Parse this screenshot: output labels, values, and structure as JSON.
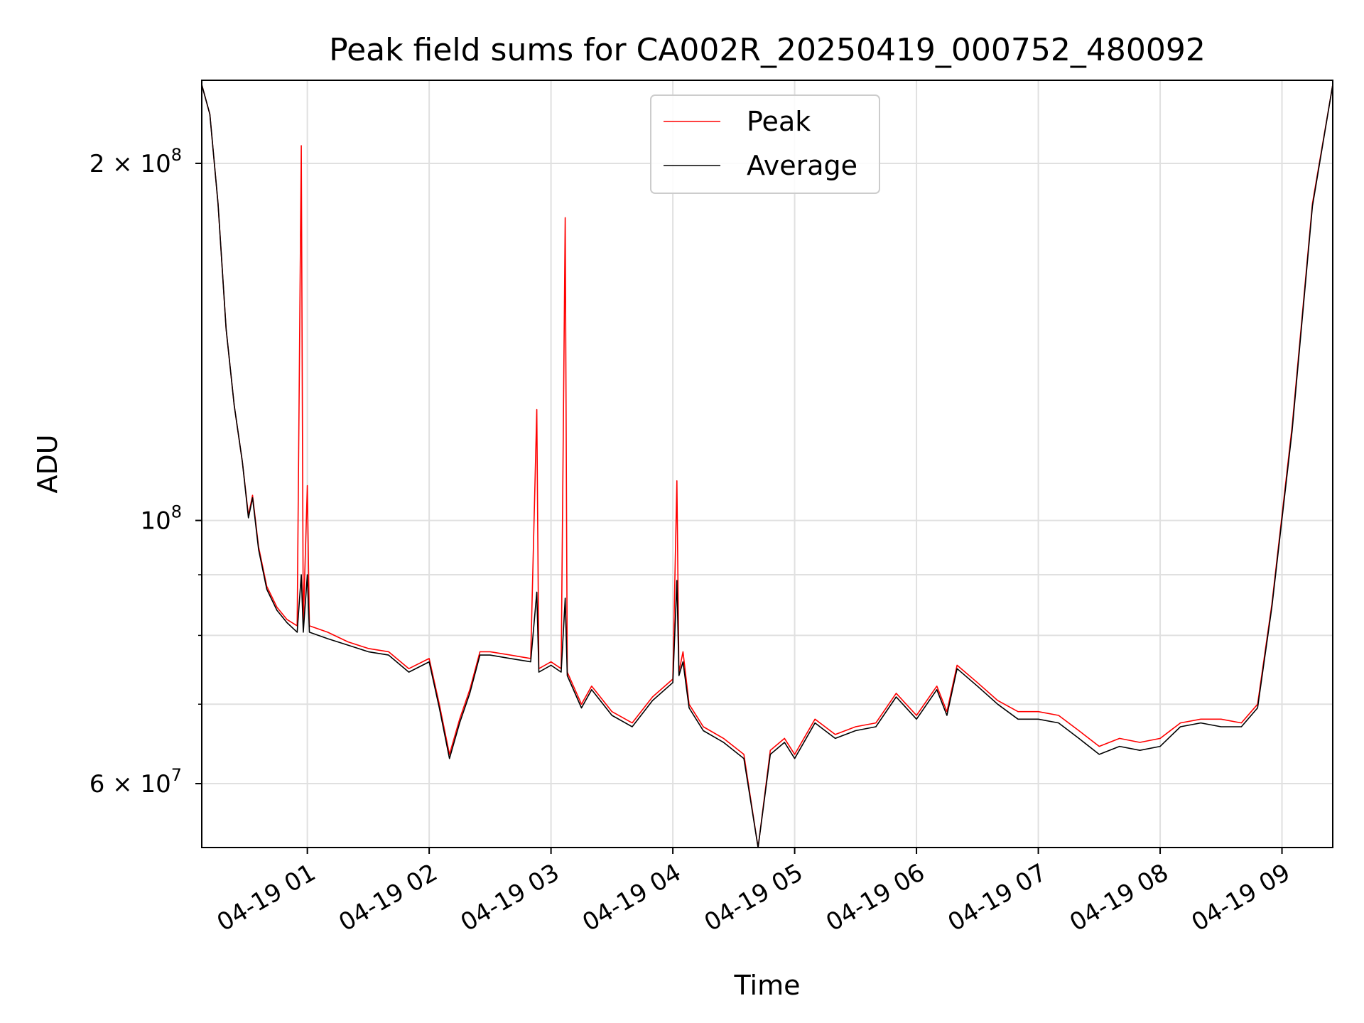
{
  "chart_data": {
    "type": "line",
    "title": "Peak field sums for CA002R_20250419_000752_480092",
    "xlabel": "Time",
    "ylabel": "ADU",
    "x_scale": "time",
    "y_scale": "log",
    "xlim": [
      "2025-04-19T00:08",
      "2025-04-19T09:25"
    ],
    "ylim": [
      53000000,
      235000000
    ],
    "x_ticks": [
      {
        "t": "2025-04-19T01:00",
        "label": "04-19 01"
      },
      {
        "t": "2025-04-19T02:00",
        "label": "04-19 02"
      },
      {
        "t": "2025-04-19T03:00",
        "label": "04-19 03"
      },
      {
        "t": "2025-04-19T04:00",
        "label": "04-19 04"
      },
      {
        "t": "2025-04-19T05:00",
        "label": "04-19 05"
      },
      {
        "t": "2025-04-19T06:00",
        "label": "04-19 06"
      },
      {
        "t": "2025-04-19T07:00",
        "label": "04-19 07"
      },
      {
        "t": "2025-04-19T08:00",
        "label": "04-19 08"
      },
      {
        "t": "2025-04-19T09:00",
        "label": "04-19 09"
      }
    ],
    "y_major_ticks": [
      {
        "value": 60000000,
        "mantissa": "6",
        "prefix": "6 × 10",
        "exp": "7"
      },
      {
        "value": 100000000,
        "mantissa": "",
        "prefix": "10",
        "exp": "8"
      },
      {
        "value": 200000000,
        "mantissa": "2",
        "prefix": "2 × 10",
        "exp": "8"
      }
    ],
    "y_minor_ticks": [
      70000000,
      80000000,
      90000000
    ],
    "grid": true,
    "legend_position": "top-center",
    "series": [
      {
        "name": "Peak",
        "color": "#ff0000",
        "points": [
          [
            "2025-04-19T00:08",
            233000000
          ],
          [
            "2025-04-19T00:12",
            220000000
          ],
          [
            "2025-04-19T00:16",
            185000000
          ],
          [
            "2025-04-19T00:20",
            145000000
          ],
          [
            "2025-04-19T00:24",
            125000000
          ],
          [
            "2025-04-19T00:28",
            112000000
          ],
          [
            "2025-04-19T00:31",
            101000000
          ],
          [
            "2025-04-19T00:33",
            105000000
          ],
          [
            "2025-04-19T00:36",
            95000000
          ],
          [
            "2025-04-19T00:40",
            88000000
          ],
          [
            "2025-04-19T00:45",
            84500000
          ],
          [
            "2025-04-19T00:50",
            82500000
          ],
          [
            "2025-04-19T00:55",
            81500000
          ],
          [
            "2025-04-19T00:57",
            207000000
          ],
          [
            "2025-04-19T00:58",
            81500000
          ],
          [
            "2025-04-19T01:00",
            107000000
          ],
          [
            "2025-04-19T01:01",
            81500000
          ],
          [
            "2025-04-19T01:10",
            80500000
          ],
          [
            "2025-04-19T01:20",
            79000000
          ],
          [
            "2025-04-19T01:30",
            78000000
          ],
          [
            "2025-04-19T01:40",
            77500000
          ],
          [
            "2025-04-19T01:50",
            75000000
          ],
          [
            "2025-04-19T02:00",
            76500000
          ],
          [
            "2025-04-19T02:05",
            70000000
          ],
          [
            "2025-04-19T02:10",
            63500000
          ],
          [
            "2025-04-19T02:15",
            68000000
          ],
          [
            "2025-04-19T02:20",
            72000000
          ],
          [
            "2025-04-19T02:25",
            77500000
          ],
          [
            "2025-04-19T02:30",
            77500000
          ],
          [
            "2025-04-19T02:40",
            77000000
          ],
          [
            "2025-04-19T02:50",
            76500000
          ],
          [
            "2025-04-19T02:53",
            124000000
          ],
          [
            "2025-04-19T02:54",
            75000000
          ],
          [
            "2025-04-19T03:00",
            76000000
          ],
          [
            "2025-04-19T03:05",
            75000000
          ],
          [
            "2025-04-19T03:07",
            180000000
          ],
          [
            "2025-04-19T03:08",
            74500000
          ],
          [
            "2025-04-19T03:15",
            70000000
          ],
          [
            "2025-04-19T03:20",
            72500000
          ],
          [
            "2025-04-19T03:30",
            69000000
          ],
          [
            "2025-04-19T03:40",
            67500000
          ],
          [
            "2025-04-19T03:50",
            71000000
          ],
          [
            "2025-04-19T04:00",
            73500000
          ],
          [
            "2025-04-19T04:02",
            108000000
          ],
          [
            "2025-04-19T04:03",
            74500000
          ],
          [
            "2025-04-19T04:05",
            77500000
          ],
          [
            "2025-04-19T04:08",
            70000000
          ],
          [
            "2025-04-19T04:15",
            67000000
          ],
          [
            "2025-04-19T04:25",
            65500000
          ],
          [
            "2025-04-19T04:35",
            63500000
          ],
          [
            "2025-04-19T04:42",
            53000000
          ],
          [
            "2025-04-19T04:48",
            64000000
          ],
          [
            "2025-04-19T04:55",
            65500000
          ],
          [
            "2025-04-19T05:00",
            63500000
          ],
          [
            "2025-04-19T05:10",
            68000000
          ],
          [
            "2025-04-19T05:20",
            66000000
          ],
          [
            "2025-04-19T05:30",
            67000000
          ],
          [
            "2025-04-19T05:40",
            67500000
          ],
          [
            "2025-04-19T05:50",
            71500000
          ],
          [
            "2025-04-19T06:00",
            68500000
          ],
          [
            "2025-04-19T06:10",
            72500000
          ],
          [
            "2025-04-19T06:15",
            69000000
          ],
          [
            "2025-04-19T06:20",
            75500000
          ],
          [
            "2025-04-19T06:30",
            73000000
          ],
          [
            "2025-04-19T06:40",
            70500000
          ],
          [
            "2025-04-19T06:50",
            69000000
          ],
          [
            "2025-04-19T07:00",
            69000000
          ],
          [
            "2025-04-19T07:10",
            68500000
          ],
          [
            "2025-04-19T07:20",
            66500000
          ],
          [
            "2025-04-19T07:30",
            64500000
          ],
          [
            "2025-04-19T07:40",
            65500000
          ],
          [
            "2025-04-19T07:50",
            65000000
          ],
          [
            "2025-04-19T08:00",
            65500000
          ],
          [
            "2025-04-19T08:10",
            67500000
          ],
          [
            "2025-04-19T08:20",
            68000000
          ],
          [
            "2025-04-19T08:30",
            68000000
          ],
          [
            "2025-04-19T08:40",
            67500000
          ],
          [
            "2025-04-19T08:48",
            70000000
          ],
          [
            "2025-04-19T08:55",
            85000000
          ],
          [
            "2025-04-19T09:05",
            120000000
          ],
          [
            "2025-04-19T09:15",
            185000000
          ],
          [
            "2025-04-19T09:25",
            233000000
          ]
        ]
      },
      {
        "name": "Average",
        "color": "#000000",
        "points": [
          [
            "2025-04-19T00:08",
            233000000
          ],
          [
            "2025-04-19T00:12",
            220000000
          ],
          [
            "2025-04-19T00:16",
            185000000
          ],
          [
            "2025-04-19T00:20",
            145000000
          ],
          [
            "2025-04-19T00:24",
            125000000
          ],
          [
            "2025-04-19T00:28",
            112000000
          ],
          [
            "2025-04-19T00:31",
            100500000
          ],
          [
            "2025-04-19T00:33",
            104500000
          ],
          [
            "2025-04-19T00:36",
            94500000
          ],
          [
            "2025-04-19T00:40",
            87500000
          ],
          [
            "2025-04-19T00:45",
            84000000
          ],
          [
            "2025-04-19T00:50",
            82000000
          ],
          [
            "2025-04-19T00:55",
            80500000
          ],
          [
            "2025-04-19T00:57",
            90000000
          ],
          [
            "2025-04-19T00:58",
            80500000
          ],
          [
            "2025-04-19T01:00",
            90000000
          ],
          [
            "2025-04-19T01:01",
            80500000
          ],
          [
            "2025-04-19T01:10",
            79500000
          ],
          [
            "2025-04-19T01:20",
            78500000
          ],
          [
            "2025-04-19T01:30",
            77500000
          ],
          [
            "2025-04-19T01:40",
            77000000
          ],
          [
            "2025-04-19T01:50",
            74500000
          ],
          [
            "2025-04-19T02:00",
            76000000
          ],
          [
            "2025-04-19T02:05",
            69500000
          ],
          [
            "2025-04-19T02:10",
            63000000
          ],
          [
            "2025-04-19T02:15",
            67500000
          ],
          [
            "2025-04-19T02:20",
            71500000
          ],
          [
            "2025-04-19T02:25",
            77000000
          ],
          [
            "2025-04-19T02:30",
            77000000
          ],
          [
            "2025-04-19T02:40",
            76500000
          ],
          [
            "2025-04-19T02:50",
            76000000
          ],
          [
            "2025-04-19T02:53",
            87000000
          ],
          [
            "2025-04-19T02:54",
            74500000
          ],
          [
            "2025-04-19T03:00",
            75500000
          ],
          [
            "2025-04-19T03:05",
            74500000
          ],
          [
            "2025-04-19T03:07",
            86000000
          ],
          [
            "2025-04-19T03:08",
            74000000
          ],
          [
            "2025-04-19T03:15",
            69500000
          ],
          [
            "2025-04-19T03:20",
            72000000
          ],
          [
            "2025-04-19T03:30",
            68500000
          ],
          [
            "2025-04-19T03:40",
            67000000
          ],
          [
            "2025-04-19T03:50",
            70500000
          ],
          [
            "2025-04-19T04:00",
            73000000
          ],
          [
            "2025-04-19T04:02",
            89000000
          ],
          [
            "2025-04-19T04:03",
            74000000
          ],
          [
            "2025-04-19T04:05",
            76000000
          ],
          [
            "2025-04-19T04:08",
            69500000
          ],
          [
            "2025-04-19T04:15",
            66500000
          ],
          [
            "2025-04-19T04:25",
            65000000
          ],
          [
            "2025-04-19T04:35",
            63000000
          ],
          [
            "2025-04-19T04:42",
            53000000
          ],
          [
            "2025-04-19T04:48",
            63500000
          ],
          [
            "2025-04-19T04:55",
            65000000
          ],
          [
            "2025-04-19T05:00",
            63000000
          ],
          [
            "2025-04-19T05:10",
            67500000
          ],
          [
            "2025-04-19T05:20",
            65500000
          ],
          [
            "2025-04-19T05:30",
            66500000
          ],
          [
            "2025-04-19T05:40",
            67000000
          ],
          [
            "2025-04-19T05:50",
            71000000
          ],
          [
            "2025-04-19T06:00",
            68000000
          ],
          [
            "2025-04-19T06:10",
            72000000
          ],
          [
            "2025-04-19T06:15",
            68500000
          ],
          [
            "2025-04-19T06:20",
            75000000
          ],
          [
            "2025-04-19T06:30",
            72500000
          ],
          [
            "2025-04-19T06:40",
            70000000
          ],
          [
            "2025-04-19T06:50",
            68000000
          ],
          [
            "2025-04-19T07:00",
            68000000
          ],
          [
            "2025-04-19T07:10",
            67500000
          ],
          [
            "2025-04-19T07:20",
            65500000
          ],
          [
            "2025-04-19T07:30",
            63500000
          ],
          [
            "2025-04-19T07:40",
            64500000
          ],
          [
            "2025-04-19T07:50",
            64000000
          ],
          [
            "2025-04-19T08:00",
            64500000
          ],
          [
            "2025-04-19T08:10",
            67000000
          ],
          [
            "2025-04-19T08:20",
            67500000
          ],
          [
            "2025-04-19T08:30",
            67000000
          ],
          [
            "2025-04-19T08:40",
            67000000
          ],
          [
            "2025-04-19T08:48",
            69500000
          ],
          [
            "2025-04-19T08:55",
            84500000
          ],
          [
            "2025-04-19T09:05",
            119000000
          ],
          [
            "2025-04-19T09:15",
            184000000
          ],
          [
            "2025-04-19T09:25",
            233000000
          ]
        ]
      }
    ]
  }
}
